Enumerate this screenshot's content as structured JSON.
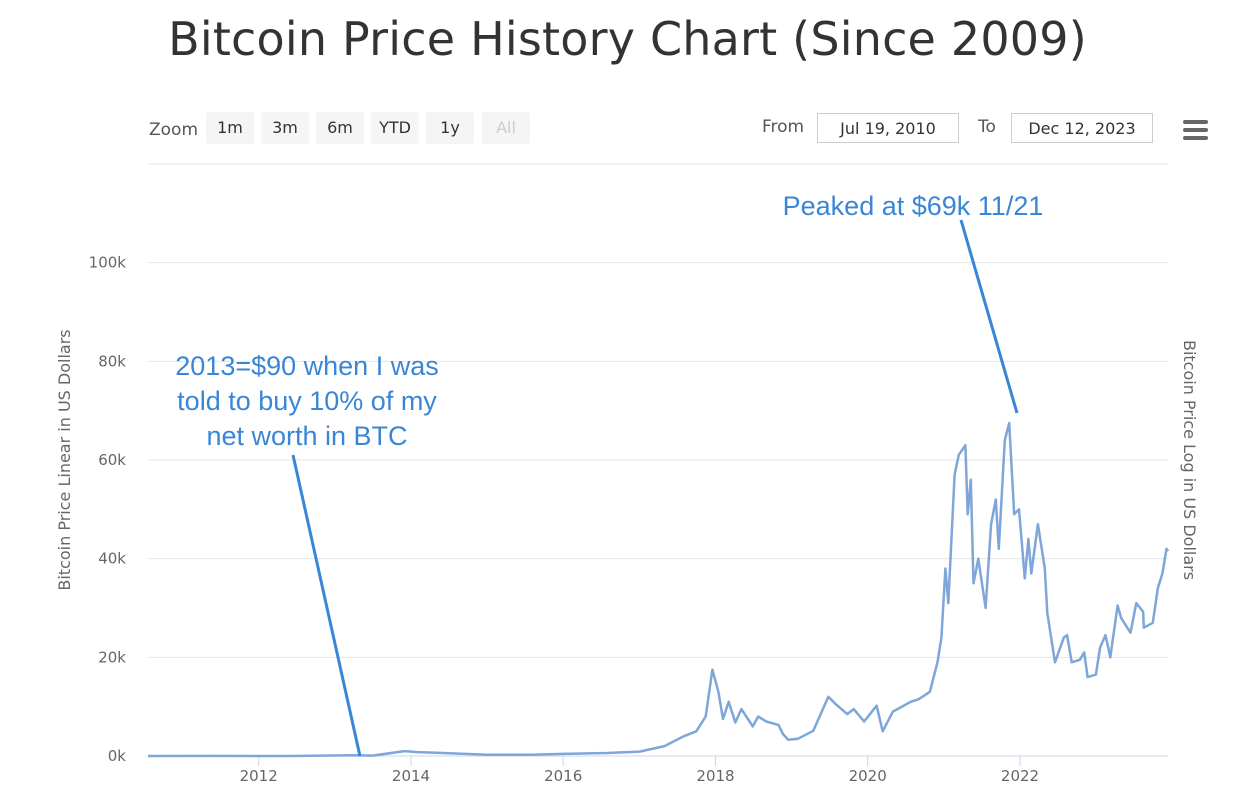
{
  "page": {
    "title": "Bitcoin Price History Chart (Since 2009)"
  },
  "toolbar": {
    "zoom_label": "Zoom",
    "zoom_buttons": [
      {
        "label": "1m",
        "disabled": false
      },
      {
        "label": "3m",
        "disabled": false
      },
      {
        "label": "6m",
        "disabled": false
      },
      {
        "label": "YTD",
        "disabled": false
      },
      {
        "label": "1y",
        "disabled": false
      },
      {
        "label": "All",
        "disabled": true
      }
    ],
    "from_label": "From",
    "from_value": "Jul 19, 2010",
    "to_label": "To",
    "to_value": "Dec 12, 2023",
    "menu_icon": "hamburger-menu-icon"
  },
  "chart_data": {
    "type": "line",
    "title": "Bitcoin Price History Chart (Since 2009)",
    "ylabel": "Bitcoin Price Linear in US Dollars",
    "ylabel_right": "Bitcoin Price Log in US Dollars",
    "ylim": [
      0,
      100000
    ],
    "xlim": [
      "2010-07-19",
      "2023-12-12"
    ],
    "grid": true,
    "y_ticks": [
      {
        "value": 0,
        "label": "0k"
      },
      {
        "value": 20000,
        "label": "20k"
      },
      {
        "value": 40000,
        "label": "40k"
      },
      {
        "value": 60000,
        "label": "60k"
      },
      {
        "value": 80000,
        "label": "80k"
      },
      {
        "value": 100000,
        "label": "100k"
      }
    ],
    "x_ticks": [
      {
        "value": "2012-01-01",
        "label": "2012"
      },
      {
        "value": "2014-01-01",
        "label": "2014"
      },
      {
        "value": "2016-01-01",
        "label": "2016"
      },
      {
        "value": "2018-01-01",
        "label": "2018"
      },
      {
        "value": "2020-01-01",
        "label": "2020"
      },
      {
        "value": "2022-01-01",
        "label": "2022"
      }
    ],
    "series": [
      {
        "color": "#7ea6d9",
        "points": [
          [
            "2010-07-19",
            0
          ],
          [
            "2011-06-01",
            20
          ],
          [
            "2012-06-01",
            7
          ],
          [
            "2013-04-01",
            140
          ],
          [
            "2013-07-01",
            90
          ],
          [
            "2013-12-01",
            1000
          ],
          [
            "2014-02-01",
            800
          ],
          [
            "2014-06-01",
            600
          ],
          [
            "2015-01-01",
            250
          ],
          [
            "2015-08-01",
            250
          ],
          [
            "2016-01-01",
            430
          ],
          [
            "2016-08-01",
            600
          ],
          [
            "2017-01-01",
            900
          ],
          [
            "2017-05-01",
            2000
          ],
          [
            "2017-08-01",
            4000
          ],
          [
            "2017-10-01",
            5000
          ],
          [
            "2017-11-15",
            8000
          ],
          [
            "2017-12-17",
            17500
          ],
          [
            "2018-01-15",
            13000
          ],
          [
            "2018-02-06",
            7500
          ],
          [
            "2018-03-05",
            11000
          ],
          [
            "2018-04-06",
            6800
          ],
          [
            "2018-05-05",
            9500
          ],
          [
            "2018-06-29",
            6000
          ],
          [
            "2018-07-25",
            8000
          ],
          [
            "2018-09-01",
            7000
          ],
          [
            "2018-10-30",
            6300
          ],
          [
            "2018-11-20",
            4500
          ],
          [
            "2018-12-15",
            3300
          ],
          [
            "2019-02-01",
            3500
          ],
          [
            "2019-04-15",
            5100
          ],
          [
            "2019-06-26",
            12000
          ],
          [
            "2019-08-01",
            10500
          ],
          [
            "2019-09-25",
            8500
          ],
          [
            "2019-10-26",
            9500
          ],
          [
            "2019-12-15",
            7000
          ],
          [
            "2020-02-13",
            10200
          ],
          [
            "2020-03-13",
            5000
          ],
          [
            "2020-05-01",
            9000
          ],
          [
            "2020-07-27",
            11000
          ],
          [
            "2020-09-01",
            11500
          ],
          [
            "2020-10-25",
            13000
          ],
          [
            "2020-12-01",
            19000
          ],
          [
            "2020-12-20",
            24000
          ],
          [
            "2021-01-08",
            38000
          ],
          [
            "2021-01-22",
            31000
          ],
          [
            "2021-02-21",
            57000
          ],
          [
            "2021-03-13",
            61000
          ],
          [
            "2021-04-14",
            63000
          ],
          [
            "2021-04-25",
            49000
          ],
          [
            "2021-05-10",
            56000
          ],
          [
            "2021-05-23",
            35000
          ],
          [
            "2021-06-15",
            40000
          ],
          [
            "2021-07-20",
            30000
          ],
          [
            "2021-08-15",
            47000
          ],
          [
            "2021-09-07",
            52000
          ],
          [
            "2021-09-21",
            42000
          ],
          [
            "2021-10-20",
            64000
          ],
          [
            "2021-11-10",
            67500
          ],
          [
            "2021-12-04",
            49000
          ],
          [
            "2021-12-27",
            50000
          ],
          [
            "2022-01-24",
            36000
          ],
          [
            "2022-02-10",
            44000
          ],
          [
            "2022-02-24",
            37000
          ],
          [
            "2022-03-28",
            47000
          ],
          [
            "2022-04-30",
            38000
          ],
          [
            "2022-05-12",
            29000
          ],
          [
            "2022-06-18",
            19000
          ],
          [
            "2022-07-30",
            24000
          ],
          [
            "2022-08-15",
            24500
          ],
          [
            "2022-09-06",
            19000
          ],
          [
            "2022-10-15",
            19500
          ],
          [
            "2022-11-05",
            21000
          ],
          [
            "2022-11-21",
            16000
          ],
          [
            "2022-12-31",
            16500
          ],
          [
            "2023-01-20",
            22000
          ],
          [
            "2023-02-15",
            24500
          ],
          [
            "2023-03-10",
            20000
          ],
          [
            "2023-04-14",
            30500
          ],
          [
            "2023-05-01",
            28000
          ],
          [
            "2023-06-15",
            25000
          ],
          [
            "2023-07-13",
            31000
          ],
          [
            "2023-08-15",
            29200
          ],
          [
            "2023-08-18",
            26000
          ],
          [
            "2023-09-30",
            27000
          ],
          [
            "2023-10-24",
            34000
          ],
          [
            "2023-11-15",
            37000
          ],
          [
            "2023-12-05",
            42000
          ],
          [
            "2023-12-12",
            41500
          ]
        ]
      }
    ],
    "annotations": [
      {
        "lines": [
          "2013=$90 when I was",
          "told to buy 10% of my",
          "net worth in BTC"
        ],
        "arrow_to": [
          "2013-05-01",
          0
        ]
      },
      {
        "lines": [
          "Peaked at $69k 11/21"
        ],
        "arrow_to": [
          "2021-11-10",
          69000
        ]
      }
    ]
  }
}
